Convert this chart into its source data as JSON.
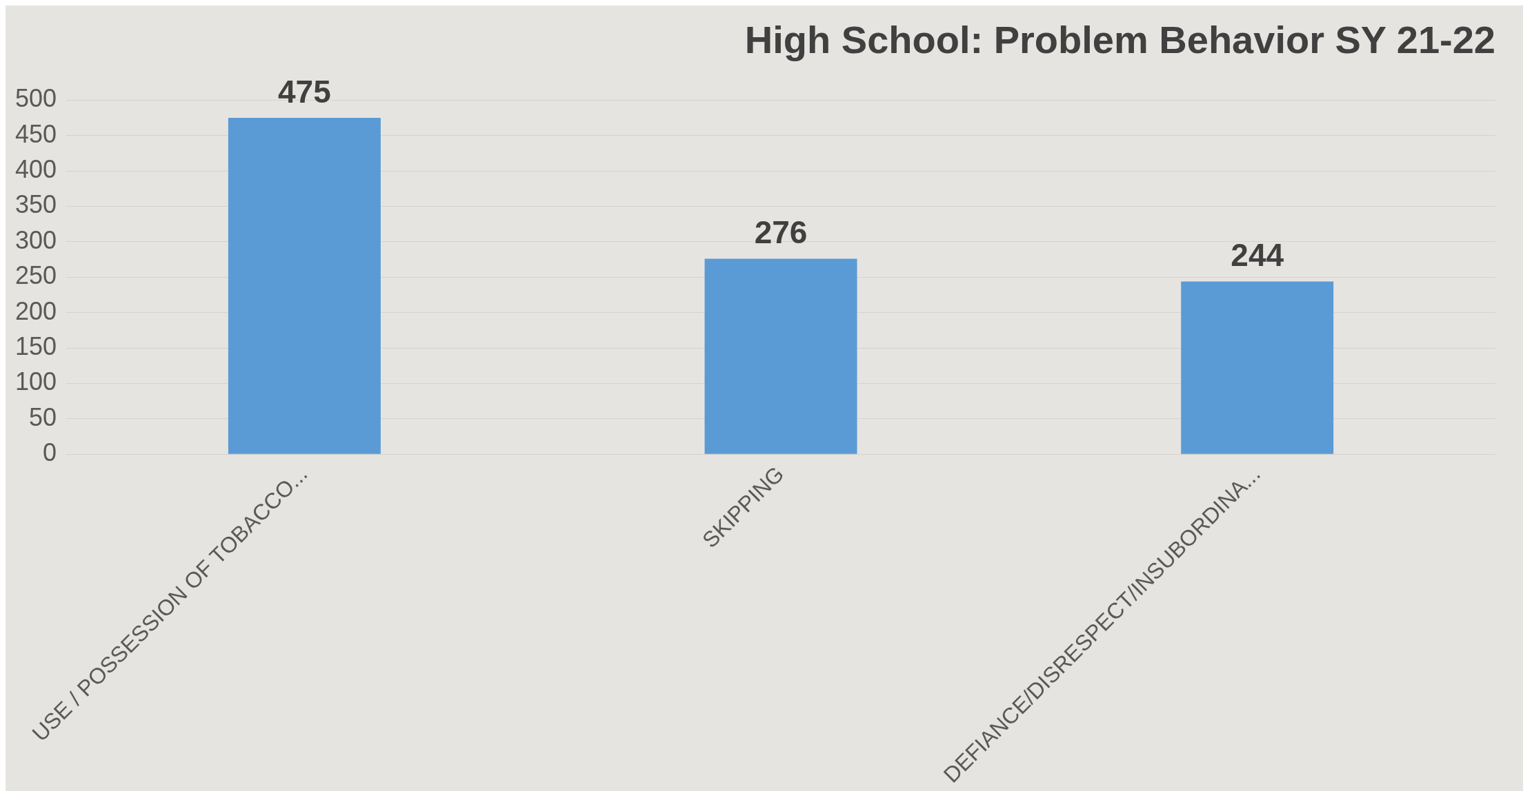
{
  "chart_data": {
    "type": "bar",
    "title": "High School: Problem Behavior SY 21-22",
    "categories": [
      "USE / POSSESSION OF TOBACCO...",
      "SKIPPING",
      "DEFIANCE/DISRESPECT/INSUBORDINA..."
    ],
    "values": [
      475,
      276,
      244
    ],
    "color": "#5b9bd5",
    "ylim": [
      0,
      500
    ],
    "yticks": [
      0,
      50,
      100,
      150,
      200,
      250,
      300,
      350,
      400,
      450,
      500
    ],
    "grid": "y",
    "data_labels": true,
    "legend": false
  }
}
